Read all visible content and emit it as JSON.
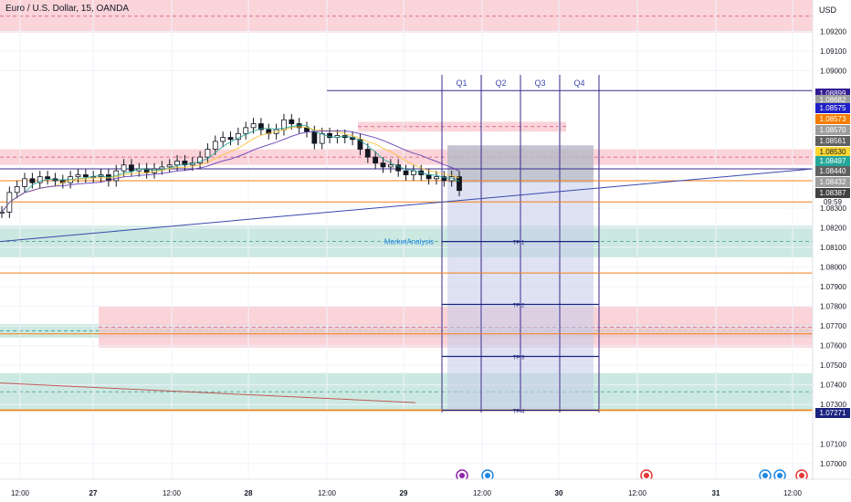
{
  "header": {
    "symbol": "Euro / U.S. Dollar, 15, OANDA",
    "currency": "USD"
  },
  "annotation": {
    "market_label": "MarketAnalysis"
  },
  "quarters": [
    "Q1",
    "Q2",
    "Q3",
    "Q4"
  ],
  "targets": [
    "TP 1",
    "TP 2",
    "TP 3",
    "TP 4"
  ],
  "countdown": "09:59",
  "colors": {
    "supply_zone": "#f8c6cc",
    "demand_zone": "#bfe3da",
    "orange_line": "#f57f17",
    "purple_line": "#3f2a8c",
    "trend_line": "#3949ab",
    "projection_box": "#c5cae9",
    "candle": "#131722"
  },
  "chart_data": {
    "type": "line",
    "title": "Euro / U.S. Dollar, 15, OANDA",
    "xlabel": "",
    "ylabel": "",
    "ylim": [
      1.0692,
      1.0936
    ],
    "x_ticks": [
      "12:00",
      "27",
      "12:00",
      "28",
      "12:00",
      "29",
      "12:00",
      "30",
      "12:00",
      "31",
      "12:00"
    ],
    "y_ticks": [
      "1.09200",
      "1.09100",
      "1.09000",
      "1.08300",
      "1.08200",
      "1.08100",
      "1.08000",
      "1.07900",
      "1.07800",
      "1.07700",
      "1.07600",
      "1.07500",
      "1.07400",
      "1.07300",
      "1.07100",
      "1.07000"
    ],
    "price_labels": [
      {
        "value": "1.08899",
        "color": "#311b92"
      },
      {
        "value": "1.08682",
        "color": "#9e9e9e"
      },
      {
        "value": "1.08575",
        "color": "#1e1ec8"
      },
      {
        "value": "1.08573",
        "color": "#f57c00"
      },
      {
        "value": "1.08570",
        "color": "#9e9e9e"
      },
      {
        "value": "1.08561",
        "color": "#616161"
      },
      {
        "value": "1.08530",
        "color": "#fdd835"
      },
      {
        "value": "1.08497",
        "color": "#26a69a"
      },
      {
        "value": "1.08440",
        "color": "#616161"
      },
      {
        "value": "1.08432",
        "color": "#9e9e9e"
      },
      {
        "value": "1.08387",
        "color": "#424242"
      },
      {
        "value": "1.07271",
        "color": "#1a237e"
      }
    ],
    "horizontal_levels": [
      {
        "name": "resistance-high",
        "value": 1.08899,
        "color": "#3f2a8c"
      },
      {
        "name": "orange-level-1",
        "value": 1.0844,
        "color": "#f57f17"
      },
      {
        "name": "orange-level-2",
        "value": 1.08332,
        "color": "#f57f17"
      },
      {
        "name": "orange-level-3",
        "value": 1.0797,
        "color": "#f57f17"
      },
      {
        "name": "orange-level-4",
        "value": 1.0766,
        "color": "#f57f17"
      },
      {
        "name": "orange-level-5",
        "value": 1.07271,
        "color": "#f57f17"
      }
    ],
    "zones": [
      {
        "type": "supply",
        "from": 1.09195,
        "to": 1.0936
      },
      {
        "type": "supply",
        "from": 1.0852,
        "to": 1.086
      },
      {
        "type": "supply",
        "from": 1.0869,
        "to": 1.0874
      },
      {
        "type": "demand",
        "from": 1.0805,
        "to": 1.0821
      },
      {
        "type": "demand",
        "from": 1.0764,
        "to": 1.0771
      },
      {
        "type": "supply",
        "from": 1.0759,
        "to": 1.078
      },
      {
        "type": "demand",
        "from": 1.0727,
        "to": 1.0746
      }
    ],
    "targets": [
      {
        "name": "TP 1",
        "value": 1.0813
      },
      {
        "name": "TP 2",
        "value": 1.0781
      },
      {
        "name": "TP 3",
        "value": 1.07545
      },
      {
        "name": "TP 4",
        "value": 1.07271
      }
    ],
    "series": [
      {
        "x": [
          0,
          1,
          2,
          3,
          4,
          5,
          6,
          7,
          8,
          9,
          10,
          11,
          12,
          13,
          14,
          15,
          16,
          17,
          18,
          19,
          20,
          21,
          22,
          23,
          24,
          25,
          26,
          27,
          28,
          29,
          30,
          31,
          32,
          33,
          34,
          35,
          36,
          37,
          38,
          39,
          40,
          41,
          42,
          43,
          44,
          45,
          46,
          47,
          48,
          49,
          50,
          51,
          52,
          53,
          54,
          55,
          56,
          57,
          58,
          59,
          60
        ],
        "values": [
          1.0828,
          1.0838,
          1.0841,
          1.0845,
          1.0843,
          1.0846,
          1.0845,
          1.0844,
          1.0843,
          1.0846,
          1.0847,
          1.0846,
          1.0846,
          1.0847,
          1.0844,
          1.0849,
          1.0852,
          1.0849,
          1.085,
          1.0848,
          1.085,
          1.0851,
          1.0852,
          1.0854,
          1.0852,
          1.0853,
          1.0856,
          1.086,
          1.0864,
          1.0866,
          1.0865,
          1.0868,
          1.0871,
          1.0873,
          1.087,
          1.0868,
          1.087,
          1.0875,
          1.0873,
          1.0871,
          1.0869,
          1.0863,
          1.0868,
          1.0866,
          1.0867,
          1.0866,
          1.0865,
          1.086,
          1.0856,
          1.0853,
          1.0851,
          1.0852,
          1.0849,
          1.0847,
          1.0849,
          1.0847,
          1.0845,
          1.0846,
          1.0844,
          1.0846,
          1.0839
        ]
      }
    ]
  }
}
